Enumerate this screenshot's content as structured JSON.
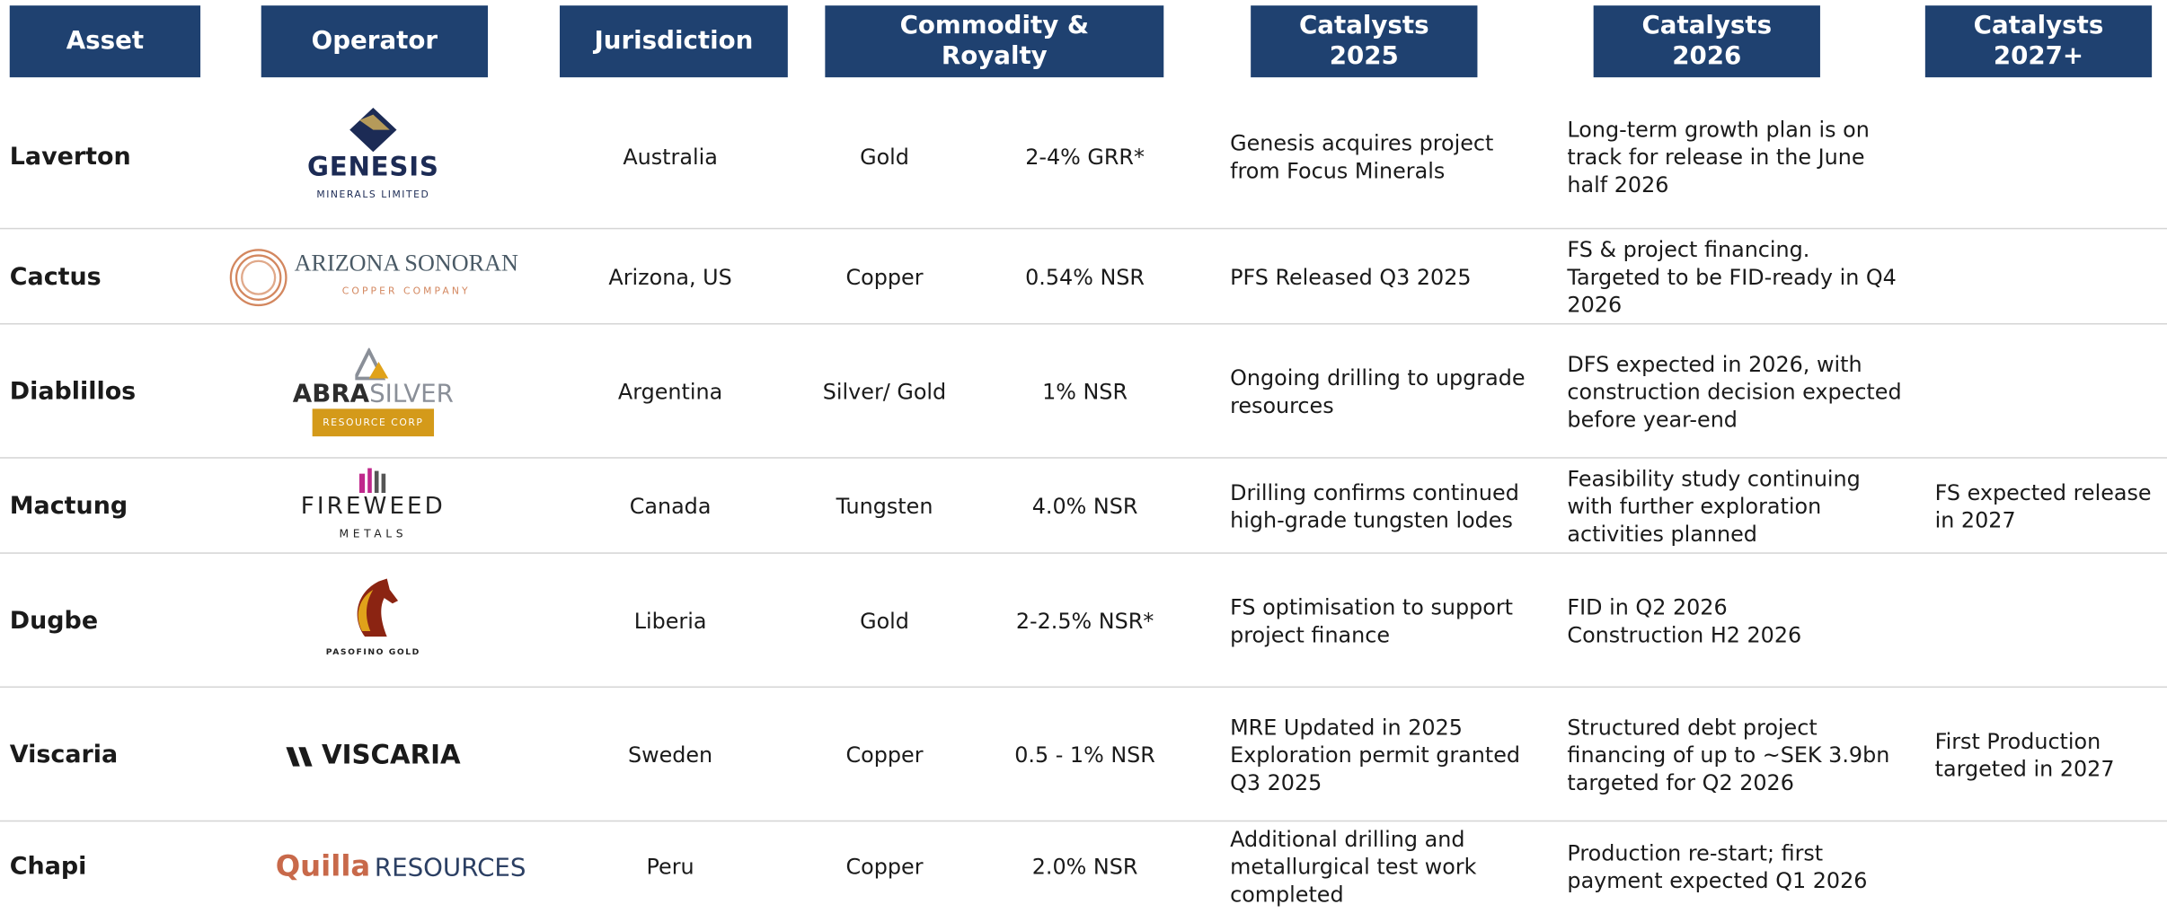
{
  "header": {
    "asset": "Asset",
    "operator": "Operator",
    "jurisdiction": "Jurisdiction",
    "commodity_royalty": "Commodity &\nRoyalty",
    "catalysts_2025": "Catalysts\n2025",
    "catalysts_2026": "Catalysts\n2026",
    "catalysts_2027": "Catalysts\n2027+"
  },
  "table": {
    "rows": [
      {
        "asset": "Laverton",
        "operator": [
          "GENESIS",
          "MINERALS LIMITED"
        ],
        "jurisdiction": "Australia",
        "commodity": "Gold",
        "royalty": "2-4% GRR*",
        "catalysts_2025": "Genesis acquires project from Focus Minerals",
        "catalysts_2026": "Long-term growth plan is on track for release in the June half 2026"
      },
      {
        "asset": "Cactus",
        "operator": [
          "ARIZONA SONORAN",
          "COPPER COMPANY"
        ],
        "jurisdiction": "Arizona, US",
        "commodity": "Copper",
        "royalty": "0.54% NSR",
        "catalysts_2025": "PFS Released Q3 2025",
        "catalysts_2026": "FS & project financing. Targeted to be FID-ready in Q4 2026"
      },
      {
        "asset": "Diablillos",
        "operator": [
          "ABRA",
          "SILVER",
          "RESOURCE CORP"
        ],
        "jurisdiction": "Argentina",
        "commodity": "Silver/ Gold",
        "royalty": "1% NSR",
        "catalysts_2025": "Ongoing drilling to upgrade resources",
        "catalysts_2026": "DFS expected in 2026, with construction decision expected before year-end"
      },
      {
        "asset": "Mactung",
        "operator": [
          "FIREWEED",
          "METALS"
        ],
        "jurisdiction": "Canada",
        "commodity": "Tungsten",
        "royalty": "4.0% NSR",
        "catalysts_2025": "Drilling confirms continued high-grade tungsten lodes",
        "catalysts_2026": "Feasibility study continuing with further exploration activities planned",
        "catalysts_2027": "FS expected release in 2027"
      },
      {
        "asset": "Dugbe",
        "operator": [
          "PASOFINO GOLD"
        ],
        "jurisdiction": "Liberia",
        "commodity": "Gold",
        "royalty": "2-2.5% NSR*",
        "catalysts_2025": "FS optimisation to support project finance",
        "catalysts_2026": "FID in Q2 2026\nConstruction H2 2026"
      },
      {
        "asset": "Viscaria",
        "operator": [
          "VISCARIA"
        ],
        "jurisdiction": "Sweden",
        "commodity": "Copper",
        "royalty": "0.5 - 1% NSR",
        "catalysts_2025": "MRE Updated in 2025\nExploration permit granted Q3 2025",
        "catalysts_2026": "Structured debt project financing of up to ~SEK 3.9bn targeted for Q2 2026",
        "catalysts_2027": "First Production targeted in 2027"
      },
      {
        "asset": "Chapi",
        "operator": [
          "Quilla",
          "RESOURCES"
        ],
        "jurisdiction": "Peru",
        "commodity": "Copper",
        "royalty": "2.0% NSR",
        "catalysts_2025": "Additional drilling and metallurgical test work completed",
        "catalysts_2026": "Production re-start; first payment expected Q1 2026"
      }
    ]
  }
}
